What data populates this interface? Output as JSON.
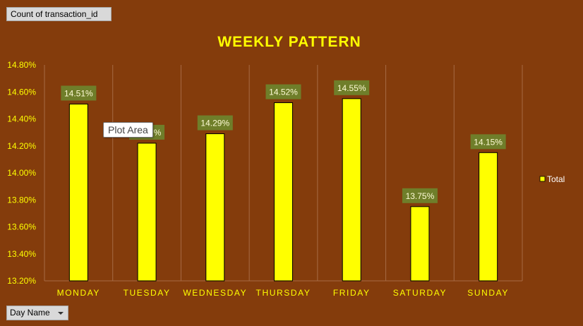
{
  "pivot": {
    "value_field_label": "Count of transaction_id",
    "axis_field_label": "Day Name"
  },
  "tooltip": "Plot Area",
  "colors": {
    "background": "#843c0c",
    "bar_fill": "#ffff00",
    "bar_stroke": "#000000",
    "text_yellow": "#ffff00",
    "label_box": "#6f7e2a",
    "label_text": "#fffcd6",
    "grid": "#a66a45"
  },
  "chart_data": {
    "type": "bar",
    "title": "WEEKLY PATTERN",
    "categories": [
      "MONDAY",
      "TUESDAY",
      "WEDNESDAY",
      "THURSDAY",
      "FRIDAY",
      "SATURDAY",
      "SUNDAY"
    ],
    "series": [
      {
        "name": "Total",
        "values": [
          14.51,
          14.22,
          14.29,
          14.52,
          14.55,
          13.75,
          14.15
        ],
        "labels": [
          "14.51%",
          "14.22%",
          "14.29%",
          "14.52%",
          "14.55%",
          "13.75%",
          "14.15%"
        ]
      }
    ],
    "ylim": [
      13.2,
      14.8
    ],
    "yticks": [
      "13.20%",
      "13.40%",
      "13.60%",
      "13.80%",
      "14.00%",
      "14.20%",
      "14.40%",
      "14.60%",
      "14.80%"
    ],
    "ytick_values": [
      13.2,
      13.4,
      13.6,
      13.8,
      14.0,
      14.2,
      14.4,
      14.6,
      14.8
    ],
    "grid": "vertical",
    "legend_position": "right"
  }
}
